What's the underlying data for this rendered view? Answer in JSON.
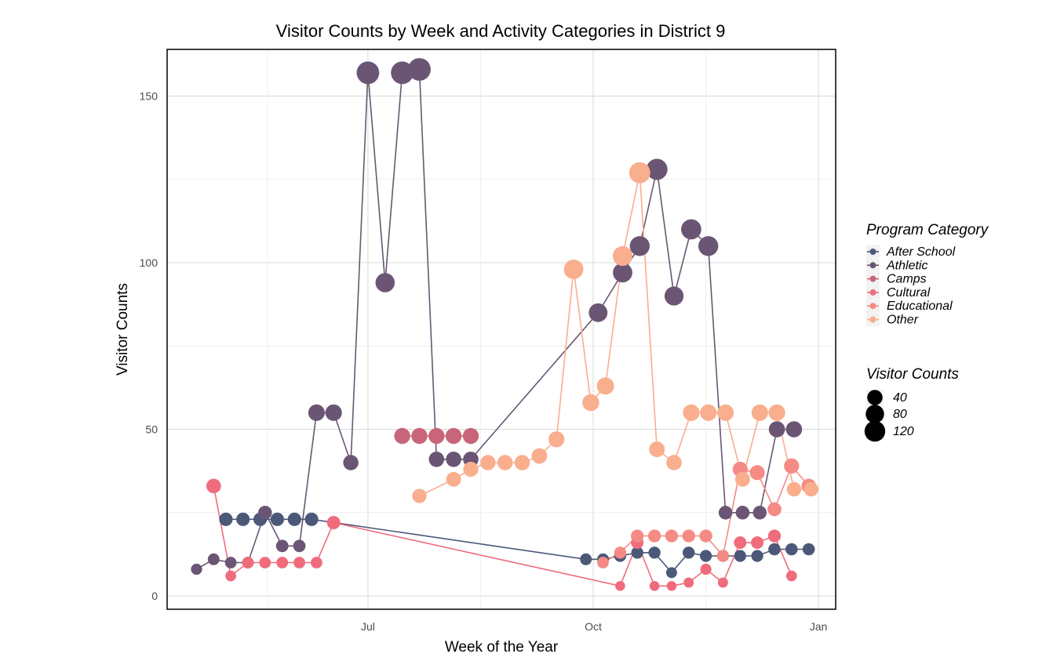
{
  "chart_data": {
    "type": "line",
    "title": "Visitor Counts by Week and Activity Categories in District 9",
    "xlabel": "Week of the Year",
    "ylabel": "Visitor Counts",
    "x_type": "date",
    "xlim": [
      "2023-04-10",
      "2024-01-08"
    ],
    "ylim": [
      -4,
      164
    ],
    "x_ticks": [
      {
        "date": "2023-07-01",
        "label": "Jul"
      },
      {
        "date": "2023-10-01",
        "label": "Oct"
      },
      {
        "date": "2024-01-01",
        "label": "Jan"
      }
    ],
    "y_ticks": [
      0,
      50,
      100,
      150
    ],
    "grid": true,
    "legend": {
      "placement": "right",
      "color_title": "Program Category",
      "size_title": "Visitor Counts",
      "size_breaks": [
        40,
        80,
        120
      ]
    },
    "series": [
      {
        "name": "After School",
        "color": "#4b5878",
        "points": [
          [
            "2023-05-04",
            23
          ],
          [
            "2023-05-11",
            23
          ],
          [
            "2023-05-18",
            23
          ],
          [
            "2023-05-25",
            23
          ],
          [
            "2023-06-01",
            23
          ],
          [
            "2023-06-08",
            23
          ],
          [
            "2023-09-28",
            11
          ],
          [
            "2023-10-05",
            11
          ],
          [
            "2023-10-12",
            12
          ],
          [
            "2023-10-19",
            13
          ],
          [
            "2023-10-26",
            13
          ],
          [
            "2023-11-02",
            7
          ],
          [
            "2023-11-09",
            13
          ],
          [
            "2023-11-16",
            12
          ],
          [
            "2023-11-23",
            12
          ],
          [
            "2023-11-30",
            12
          ],
          [
            "2023-12-07",
            12
          ],
          [
            "2023-12-14",
            14
          ],
          [
            "2023-12-21",
            14
          ],
          [
            "2023-12-28",
            14
          ]
        ]
      },
      {
        "name": "Athletic",
        "color": "#6a5674",
        "points": [
          [
            "2023-04-22",
            8
          ],
          [
            "2023-04-29",
            11
          ],
          [
            "2023-05-06",
            10
          ],
          [
            "2023-05-13",
            10
          ],
          [
            "2023-05-20",
            25
          ],
          [
            "2023-05-27",
            15
          ],
          [
            "2023-06-03",
            15
          ],
          [
            "2023-06-10",
            55
          ],
          [
            "2023-06-17",
            55
          ],
          [
            "2023-06-24",
            40
          ],
          [
            "2023-07-01",
            157
          ],
          [
            "2023-07-08",
            94
          ],
          [
            "2023-07-15",
            157
          ],
          [
            "2023-07-22",
            158
          ],
          [
            "2023-07-29",
            41
          ],
          [
            "2023-08-05",
            41
          ],
          [
            "2023-08-12",
            41
          ],
          [
            "2023-10-03",
            85
          ],
          [
            "2023-10-13",
            97
          ],
          [
            "2023-10-20",
            105
          ],
          [
            "2023-10-27",
            128
          ],
          [
            "2023-11-03",
            90
          ],
          [
            "2023-11-10",
            110
          ],
          [
            "2023-11-17",
            105
          ],
          [
            "2023-11-24",
            25
          ],
          [
            "2023-12-01",
            25
          ],
          [
            "2023-12-08",
            25
          ],
          [
            "2023-12-15",
            50
          ],
          [
            "2023-12-22",
            50
          ]
        ]
      },
      {
        "name": "Camps",
        "color": "#c9657a",
        "points": [
          [
            "2023-07-15",
            48
          ],
          [
            "2023-07-22",
            48
          ],
          [
            "2023-07-29",
            48
          ],
          [
            "2023-08-05",
            48
          ],
          [
            "2023-08-12",
            48
          ]
        ]
      },
      {
        "name": "Cultural",
        "color": "#ef6c7c",
        "points": [
          [
            "2023-04-29",
            33
          ],
          [
            "2023-05-06",
            6
          ],
          [
            "2023-05-13",
            10
          ],
          [
            "2023-05-20",
            10
          ],
          [
            "2023-05-27",
            10
          ],
          [
            "2023-06-03",
            10
          ],
          [
            "2023-06-10",
            10
          ],
          [
            "2023-06-17",
            22
          ],
          [
            "2023-10-12",
            3
          ],
          [
            "2023-10-19",
            16
          ],
          [
            "2023-10-26",
            3
          ],
          [
            "2023-11-02",
            3
          ],
          [
            "2023-11-09",
            4
          ],
          [
            "2023-11-16",
            8
          ],
          [
            "2023-11-23",
            4
          ],
          [
            "2023-11-30",
            16
          ],
          [
            "2023-12-07",
            16
          ],
          [
            "2023-12-14",
            18
          ],
          [
            "2023-12-21",
            6
          ]
        ]
      },
      {
        "name": "Educational",
        "color": "#f58b84",
        "points": [
          [
            "2023-10-05",
            10
          ],
          [
            "2023-10-12",
            13
          ],
          [
            "2023-10-19",
            18
          ],
          [
            "2023-10-26",
            18
          ],
          [
            "2023-11-02",
            18
          ],
          [
            "2023-11-09",
            18
          ],
          [
            "2023-11-16",
            18
          ],
          [
            "2023-11-23",
            12
          ],
          [
            "2023-11-30",
            38
          ],
          [
            "2023-12-07",
            37
          ],
          [
            "2023-12-14",
            26
          ],
          [
            "2023-12-21",
            39
          ],
          [
            "2023-12-28",
            33
          ]
        ]
      },
      {
        "name": "Other",
        "color": "#f9ae8e",
        "points": [
          [
            "2023-07-22",
            30
          ],
          [
            "2023-08-05",
            35
          ],
          [
            "2023-08-12",
            38
          ],
          [
            "2023-08-19",
            40
          ],
          [
            "2023-08-26",
            40
          ],
          [
            "2023-09-02",
            40
          ],
          [
            "2023-09-09",
            42
          ],
          [
            "2023-09-16",
            47
          ],
          [
            "2023-09-23",
            98
          ],
          [
            "2023-09-30",
            58
          ],
          [
            "2023-10-06",
            63
          ],
          [
            "2023-10-13",
            102
          ],
          [
            "2023-10-20",
            127
          ],
          [
            "2023-10-27",
            44
          ],
          [
            "2023-11-03",
            40
          ],
          [
            "2023-11-10",
            55
          ],
          [
            "2023-11-17",
            55
          ],
          [
            "2023-11-24",
            55
          ],
          [
            "2023-12-01",
            35
          ],
          [
            "2023-12-08",
            55
          ],
          [
            "2023-12-15",
            55
          ],
          [
            "2023-12-22",
            32
          ],
          [
            "2023-12-29",
            32
          ]
        ]
      }
    ]
  }
}
